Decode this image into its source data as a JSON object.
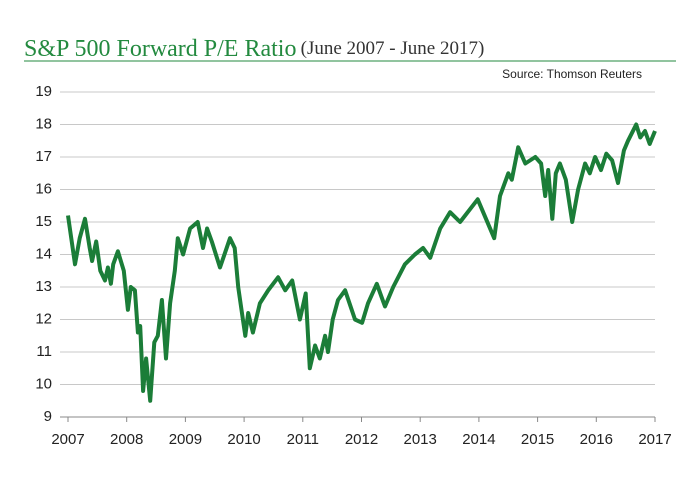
{
  "chart_data": {
    "type": "line",
    "title": "S&P 500 Forward P/E Ratio",
    "subtitle": "(June 2007 - June 2017)",
    "source": "Source: Thomson Reuters",
    "x": [
      2007.0,
      2007.12,
      2007.2,
      2007.29,
      2007.37,
      2007.41,
      2007.48,
      2007.55,
      2007.63,
      2007.68,
      2007.73,
      2007.77,
      2007.85,
      2007.95,
      2008.02,
      2008.07,
      2008.14,
      2008.19,
      2008.23,
      2008.28,
      2008.33,
      2008.4,
      2008.47,
      2008.53,
      2008.6,
      2008.67,
      2008.74,
      2008.82,
      2008.87,
      2008.96,
      2009.08,
      2009.21,
      2009.3,
      2009.37,
      2009.45,
      2009.59,
      2009.76,
      2009.84,
      2009.9,
      2009.98,
      2010.02,
      2010.07,
      2010.15,
      2010.27,
      2010.41,
      2010.58,
      2010.7,
      2010.82,
      2010.95,
      2011.05,
      2011.12,
      2011.21,
      2011.29,
      2011.38,
      2011.43,
      2011.51,
      2011.6,
      2011.72,
      2011.89,
      2012.01,
      2012.11,
      2012.26,
      2012.4,
      2012.54,
      2012.74,
      2012.91,
      2013.05,
      2013.17,
      2013.34,
      2013.51,
      2013.68,
      2013.98,
      2014.26,
      2014.36,
      2014.5,
      2014.56,
      2014.67,
      2014.79,
      2014.96,
      2015.06,
      2015.13,
      2015.18,
      2015.25,
      2015.31,
      2015.38,
      2015.48,
      2015.59,
      2015.69,
      2015.81,
      2015.89,
      2015.98,
      2016.08,
      2016.17,
      2016.27,
      2016.37,
      2016.47,
      2016.54,
      2016.68,
      2016.75,
      2016.83,
      2016.91,
      2017.0
    ],
    "series": [
      {
        "name": "Forward P/E",
        "color": "#1b7d38",
        "values": [
          15.2,
          13.7,
          14.5,
          15.1,
          14.2,
          13.8,
          14.4,
          13.5,
          13.2,
          13.6,
          13.1,
          13.7,
          14.1,
          13.5,
          12.3,
          13.0,
          12.9,
          11.6,
          11.8,
          9.8,
          10.8,
          9.5,
          11.3,
          11.5,
          12.6,
          10.8,
          12.5,
          13.5,
          14.5,
          14.0,
          14.8,
          15.0,
          14.2,
          14.8,
          14.4,
          13.6,
          14.5,
          14.2,
          13.0,
          12.0,
          11.5,
          12.2,
          11.6,
          12.5,
          12.9,
          13.3,
          12.9,
          13.2,
          12.0,
          12.8,
          10.5,
          11.2,
          10.8,
          11.5,
          11.0,
          12.0,
          12.6,
          12.9,
          12.0,
          11.9,
          12.5,
          13.1,
          12.4,
          13.0,
          13.7,
          14.0,
          14.2,
          13.9,
          14.8,
          15.3,
          15.0,
          15.7,
          14.5,
          15.8,
          16.5,
          16.3,
          17.3,
          16.8,
          17.0,
          16.8,
          15.8,
          16.6,
          15.1,
          16.5,
          16.8,
          16.3,
          15.0,
          16.0,
          16.8,
          16.5,
          17.0,
          16.6,
          17.1,
          16.9,
          16.2,
          17.2,
          17.5,
          18.0,
          17.6,
          17.8,
          17.4,
          17.8
        ]
      }
    ],
    "xlim": [
      2007,
      2017
    ],
    "xticks": [
      2007,
      2008,
      2009,
      2010,
      2011,
      2012,
      2013,
      2014,
      2015,
      2016,
      2017
    ],
    "ylim": [
      9,
      19
    ],
    "yticks": [
      9,
      10,
      11,
      12,
      13,
      14,
      15,
      16,
      17,
      18,
      19
    ],
    "grid": true
  }
}
